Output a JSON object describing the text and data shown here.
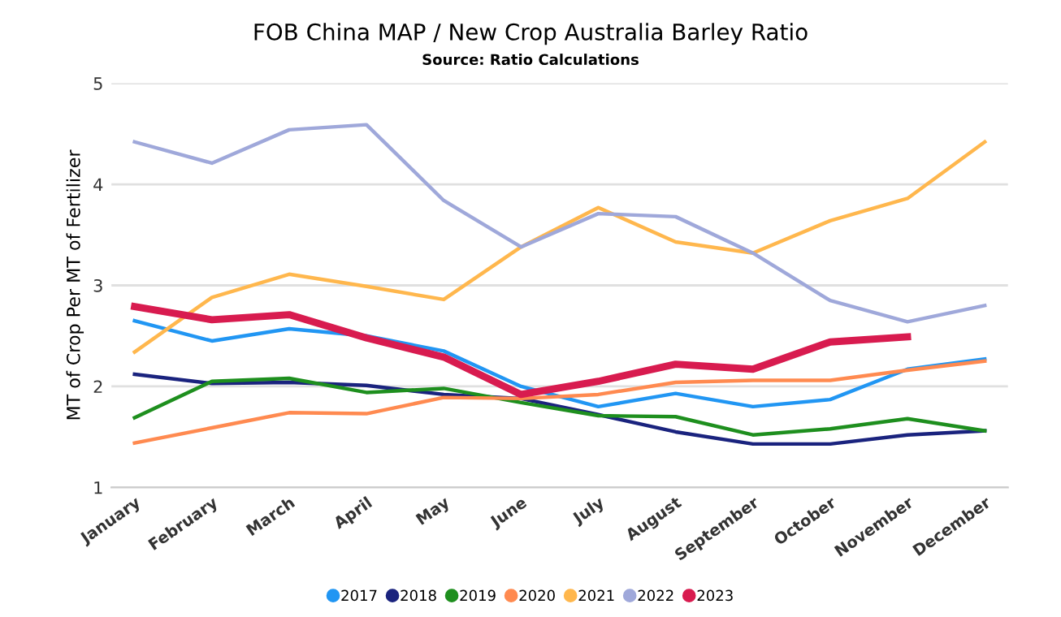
{
  "chart_data": {
    "type": "line",
    "title": "FOB China MAP / New Crop Australia Barley Ratio",
    "subtitle": "Source: Ratio Calculations",
    "ylabel": "MT of Crop Per MT of Fertilizer",
    "categories": [
      "January",
      "February",
      "March",
      "April",
      "May",
      "June",
      "July",
      "August",
      "September",
      "October",
      "November",
      "December"
    ],
    "ylim": [
      1,
      5
    ],
    "yticks": [
      1,
      2,
      3,
      4,
      5
    ],
    "grid": "y",
    "legend": "bottom",
    "marker": "none",
    "line_style": "solid",
    "series": [
      {
        "name": "2017",
        "color": "#2196f3",
        "values": [
          2.65,
          2.45,
          2.57,
          2.5,
          2.35,
          2.0,
          1.8,
          1.93,
          1.8,
          1.87,
          2.17,
          2.27
        ]
      },
      {
        "name": "2018",
        "color": "#1a237e",
        "values": [
          2.12,
          2.03,
          2.04,
          2.01,
          1.92,
          1.88,
          1.72,
          1.55,
          1.43,
          1.43,
          1.52,
          1.56
        ]
      },
      {
        "name": "2019",
        "color": "#1e8f1e",
        "values": [
          1.69,
          2.05,
          2.08,
          1.94,
          1.98,
          1.84,
          1.71,
          1.7,
          1.52,
          1.58,
          1.68,
          1.56
        ]
      },
      {
        "name": "2020",
        "color": "#ff8a50",
        "values": [
          1.44,
          1.59,
          1.74,
          1.73,
          1.89,
          1.88,
          1.92,
          2.04,
          2.06,
          2.06,
          2.16,
          2.25
        ]
      },
      {
        "name": "2021",
        "color": "#ffb74d",
        "values": [
          2.34,
          2.88,
          3.11,
          2.99,
          2.86,
          3.38,
          3.77,
          3.43,
          3.32,
          3.64,
          3.86,
          4.42
        ]
      },
      {
        "name": "2022",
        "color": "#9fa8da",
        "values": [
          4.42,
          4.21,
          4.54,
          4.59,
          3.84,
          3.38,
          3.71,
          3.68,
          3.32,
          2.85,
          2.64,
          2.8
        ]
      },
      {
        "name": "2023",
        "color": "#d81b4f",
        "values": [
          2.79,
          2.66,
          2.71,
          2.48,
          2.29,
          1.92,
          2.05,
          2.22,
          2.17,
          2.44,
          2.49,
          null
        ]
      }
    ]
  }
}
